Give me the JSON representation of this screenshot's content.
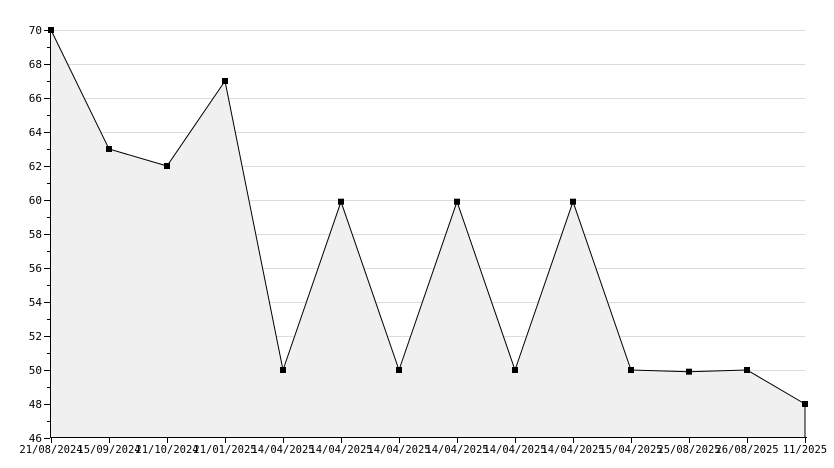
{
  "chart_data": {
    "type": "area",
    "title": "",
    "xlabel": "",
    "ylabel": "",
    "categories": [
      "21/08/2024",
      "15/09/2024",
      "21/10/2024",
      "21/01/2025",
      "14/04/2025",
      "14/04/2025",
      "14/04/2025",
      "14/04/2025",
      "14/04/2025",
      "14/04/2025",
      "15/04/2025",
      "25/08/2025",
      "26/08/2025",
      "11/2025"
    ],
    "values": [
      70,
      63,
      62,
      67,
      50,
      59.9,
      50,
      59.9,
      50,
      59.9,
      50,
      49.9,
      50,
      48
    ],
    "ylim": [
      46,
      70
    ],
    "y_major_ticks": [
      46,
      48,
      50,
      52,
      54,
      56,
      58,
      60,
      62,
      64,
      66,
      68,
      70
    ],
    "y_minor_step": 1,
    "grid": "horizontal-major",
    "legend_position": "none",
    "marker": "square",
    "colors": {
      "line": "#000000",
      "marker": "#000000",
      "fill": "#f0f0f0",
      "grid": "#dcdcdc",
      "axis": "#000000",
      "text": "#000000",
      "background": "#ffffff"
    }
  }
}
